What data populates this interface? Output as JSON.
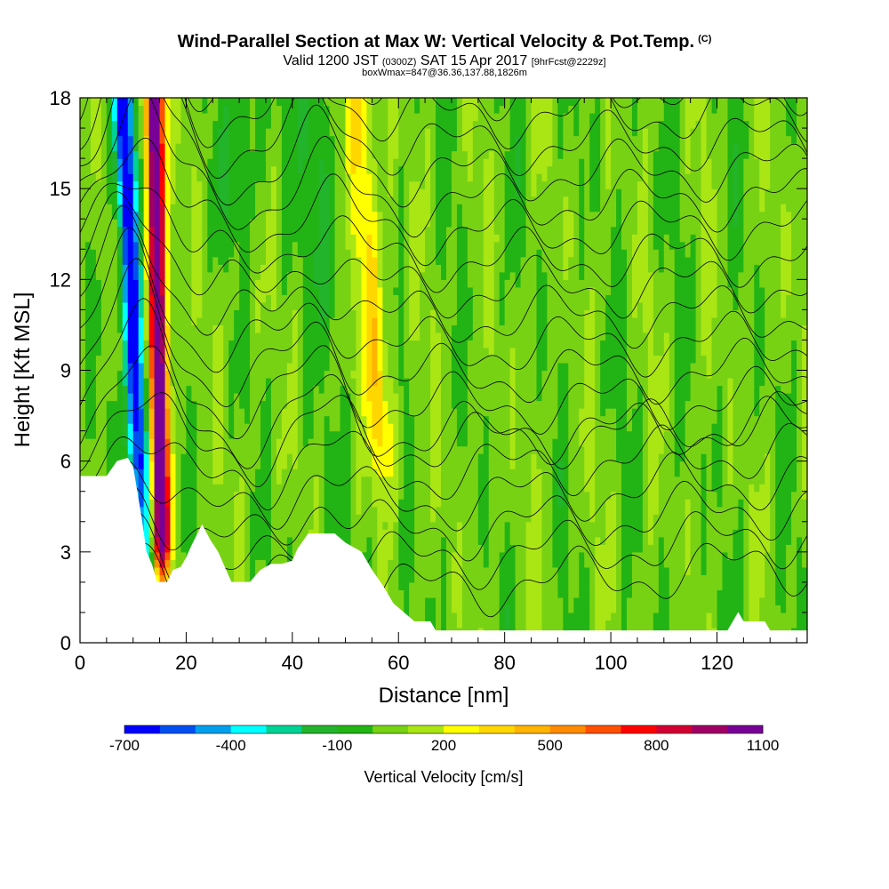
{
  "header": {
    "title": "Wind-Parallel Section at Max W: Vertical Velocity & Pot.Temp.",
    "copyright": "(C)",
    "valid_prefix": "Valid 1200 JST",
    "valid_utc": "(0300Z)",
    "valid_date": "SAT 15 Apr 2017",
    "forecast": "[9hrFcst@2229z]",
    "box_info": "boxWmax=847@36.36,137.88,1826m"
  },
  "chart_data": {
    "type": "heatmap",
    "xlabel": "Distance [nm]",
    "ylabel": "Height [Kft MSL]",
    "xlim": [
      0,
      137
    ],
    "ylim": [
      0,
      18
    ],
    "x_ticks": [
      0,
      20,
      40,
      60,
      80,
      100,
      120
    ],
    "y_ticks": [
      0,
      3,
      6,
      9,
      12,
      15,
      18
    ],
    "colorbar": {
      "label": "Vertical Velocity [cm/s]",
      "tick_labels": [
        "-700",
        "-400",
        "-100",
        "200",
        "500",
        "800",
        "1100"
      ],
      "levels": [
        -700,
        -600,
        -500,
        -400,
        -300,
        -200,
        -100,
        0,
        100,
        200,
        300,
        400,
        500,
        600,
        700,
        800,
        900,
        1000,
        1100
      ],
      "colors": [
        "#0000ff",
        "#0050f0",
        "#00a0ec",
        "#00ffff",
        "#00d296",
        "#22b42a",
        "#22b414",
        "#78d214",
        "#aae614",
        "#ffff00",
        "#ffd700",
        "#ffb400",
        "#ff8c00",
        "#ff5000",
        "#ff0000",
        "#d20032",
        "#a00064",
        "#780096"
      ]
    },
    "wvel_max_cm_s": 847,
    "features": [
      {
        "name": "downdraft",
        "x_bottom": 12,
        "x_top": 8,
        "w_min": -700
      },
      {
        "name": "updraft",
        "x_bottom": 15.5,
        "x_top": 14,
        "w_max": 1100
      },
      {
        "name": "updraft",
        "x_bottom": 58,
        "x_top": 52,
        "w_max": 300
      }
    ],
    "terrain_profile": [
      [
        0,
        5.5
      ],
      [
        5,
        5.5
      ],
      [
        7,
        6
      ],
      [
        9,
        6.1
      ],
      [
        10,
        5.8
      ],
      [
        11.5,
        4.2
      ],
      [
        12.5,
        3
      ],
      [
        13.5,
        2.6
      ],
      [
        14.5,
        2
      ],
      [
        16.5,
        2
      ],
      [
        17.5,
        2.4
      ],
      [
        19,
        2.5
      ],
      [
        20,
        2.8
      ],
      [
        21,
        3.2
      ],
      [
        23,
        3.9
      ],
      [
        24.5,
        3.4
      ],
      [
        26,
        3
      ],
      [
        27.5,
        2.4
      ],
      [
        28.5,
        2
      ],
      [
        32,
        2
      ],
      [
        34,
        2.4
      ],
      [
        36,
        2.6
      ],
      [
        38,
        2.6
      ],
      [
        40,
        2.7
      ],
      [
        41,
        3.1
      ],
      [
        43,
        3.6
      ],
      [
        48,
        3.6
      ],
      [
        50,
        3.3
      ],
      [
        53,
        3
      ],
      [
        55,
        2.4
      ],
      [
        57,
        1.9
      ],
      [
        59,
        1.3
      ],
      [
        61,
        1
      ],
      [
        63,
        0.7
      ],
      [
        66,
        0.7
      ],
      [
        67,
        0.4
      ],
      [
        122,
        0.4
      ],
      [
        123,
        0.7
      ],
      [
        124,
        1
      ],
      [
        125,
        0.7
      ],
      [
        129,
        0.7
      ],
      [
        130,
        0.4
      ],
      [
        137,
        0.4
      ]
    ],
    "isentrope_count": 19
  }
}
